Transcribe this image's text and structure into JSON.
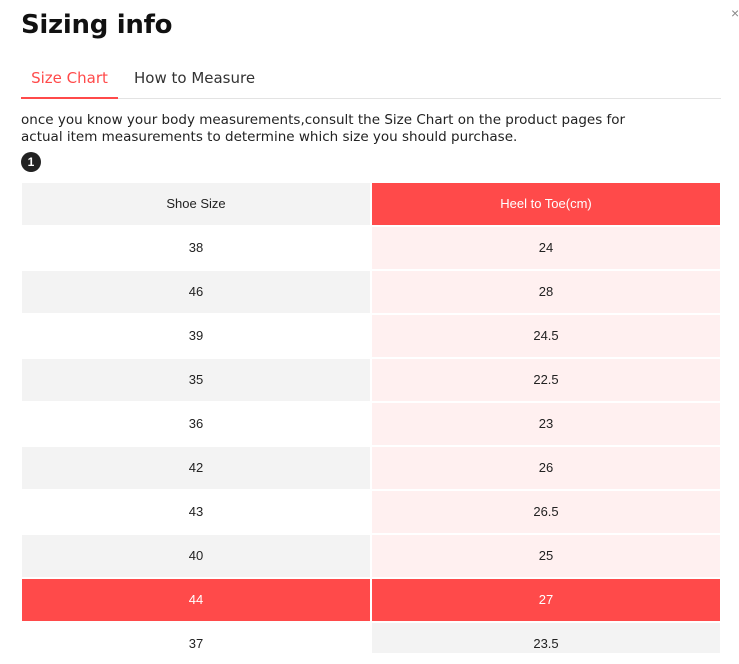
{
  "title": "Sizing info",
  "close_glyph": "×",
  "tabs": [
    {
      "label": "Size Chart",
      "active": true
    },
    {
      "label": "How to Measure",
      "active": false
    }
  ],
  "description": "once you know your body measurements,consult the Size Chart on the product pages for actual item measurements to determine which size you should purchase.",
  "step_badge": "1",
  "colors": {
    "accent": "#ff4a4a",
    "row_alt": "#f3f3f3",
    "accent_light": "#fff0f0"
  },
  "table": {
    "headers": [
      "Shoe Size",
      "Heel to Toe(cm)"
    ],
    "rows": [
      [
        "38",
        "24"
      ],
      [
        "46",
        "28"
      ],
      [
        "39",
        "24.5"
      ],
      [
        "35",
        "22.5"
      ],
      [
        "36",
        "23"
      ],
      [
        "42",
        "26"
      ],
      [
        "43",
        "26.5"
      ],
      [
        "40",
        "25"
      ],
      [
        "44",
        "27"
      ],
      [
        "37",
        "23.5"
      ]
    ],
    "highlighted_row_index": 8
  }
}
